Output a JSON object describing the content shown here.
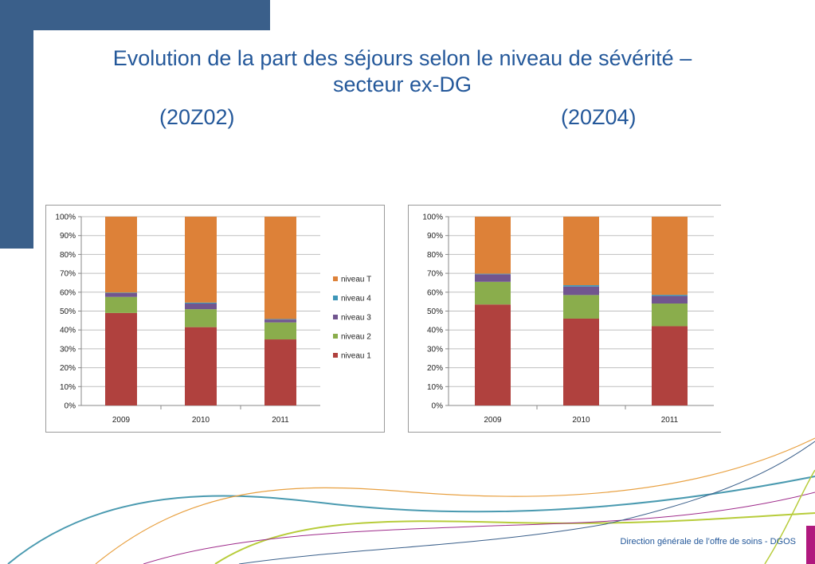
{
  "title": {
    "line1": "Evolution de la part des séjours selon le niveau de sévérité –",
    "line2": "secteur ex-DG",
    "sub_left": "(20Z02)",
    "sub_right": "(20Z04)"
  },
  "footer": {
    "text": "Direction générale de l’offre de soins - DGOS"
  },
  "colors": {
    "accent": "#3a5f8a",
    "title": "#24589a",
    "niveau_1": "#b0413e",
    "niveau_2": "#8aad4c",
    "niveau_3": "#71558f",
    "niveau_4": "#3d96b8",
    "niveau_T": "#dd8138"
  },
  "chart_data": [
    {
      "type": "bar",
      "stacked": true,
      "categories": [
        "2009",
        "2010",
        "2011"
      ],
      "ylim": [
        0,
        100
      ],
      "yticks": [
        "0%",
        "10%",
        "20%",
        "30%",
        "40%",
        "50%",
        "60%",
        "70%",
        "80%",
        "90%",
        "100%"
      ],
      "legend_position": "right",
      "legend": [
        "niveau T",
        "niveau 4",
        "niveau 3",
        "niveau 2",
        "niveau 1"
      ],
      "series": [
        {
          "name": "niveau 1",
          "color": "#b0413e",
          "values": [
            49,
            41.5,
            35
          ]
        },
        {
          "name": "niveau 2",
          "color": "#8aad4c",
          "values": [
            8.5,
            9.5,
            9
          ]
        },
        {
          "name": "niveau 3",
          "color": "#71558f",
          "values": [
            2,
            3,
            1.5
          ]
        },
        {
          "name": "niveau 4",
          "color": "#3d96b8",
          "values": [
            0.3,
            0.5,
            0.3
          ]
        },
        {
          "name": "niveau T",
          "color": "#dd8138",
          "values": [
            40.2,
            45.5,
            54.2
          ]
        }
      ]
    },
    {
      "type": "bar",
      "stacked": true,
      "categories": [
        "2009",
        "2010",
        "2011"
      ],
      "ylim": [
        0,
        100
      ],
      "yticks": [
        "0%",
        "10%",
        "20%",
        "30%",
        "40%",
        "50%",
        "60%",
        "70%",
        "80%",
        "90%",
        "100%"
      ],
      "series": [
        {
          "name": "niveau 1",
          "color": "#b0413e",
          "values": [
            53.5,
            46,
            42
          ]
        },
        {
          "name": "niveau 2",
          "color": "#8aad4c",
          "values": [
            12,
            12.5,
            12
          ]
        },
        {
          "name": "niveau 3",
          "color": "#71558f",
          "values": [
            4,
            4.5,
            4
          ]
        },
        {
          "name": "niveau 4",
          "color": "#3d96b8",
          "values": [
            0.3,
            0.7,
            0.6
          ]
        },
        {
          "name": "niveau T",
          "color": "#dd8138",
          "values": [
            30.2,
            36.3,
            41.4
          ]
        }
      ]
    }
  ]
}
